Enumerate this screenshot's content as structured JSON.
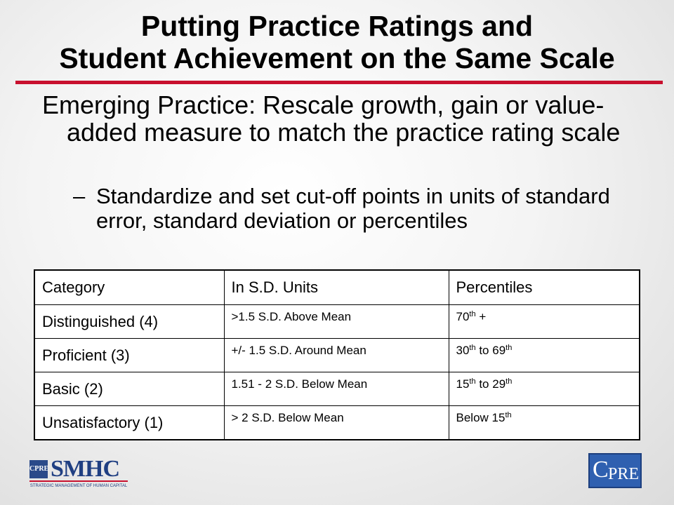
{
  "title": {
    "line1": "Putting Practice Ratings and",
    "line2": "Student Achievement on the Same Scale"
  },
  "bullets": {
    "main": "Emerging Practice: Rescale growth, gain or value-added measure to match the practice rating scale",
    "sub_dash": "–",
    "sub": "Standardize and set cut-off points in units of standard error, standard deviation or percentiles"
  },
  "table": {
    "headers": [
      "Category",
      "In S.D. Units",
      "Percentiles"
    ],
    "rows": [
      {
        "category": "Distinguished (4)",
        "sd": ">1.5 S.D. Above Mean",
        "pct_a": "70",
        "pct_a_sup": "th",
        "pct_mid": " +",
        "pct_b": "",
        "pct_b_sup": ""
      },
      {
        "category": "Proficient (3)",
        "sd": "+/- 1.5 S.D. Around Mean",
        "pct_a": "30",
        "pct_a_sup": "th",
        "pct_mid": " to 69",
        "pct_b": "",
        "pct_b_sup": "th"
      },
      {
        "category": "Basic (2)",
        "sd": "1.51 - 2 S.D. Below  Mean",
        "pct_a": "15",
        "pct_a_sup": "th",
        "pct_mid": " to 29",
        "pct_b": "",
        "pct_b_sup": "th"
      },
      {
        "category": "Unsatisfactory (1)",
        "sd": "> 2 S.D. Below Mean",
        "pct_a": "Below 15",
        "pct_a_sup": "th",
        "pct_mid": "",
        "pct_b": "",
        "pct_b_sup": ""
      }
    ]
  },
  "logos": {
    "smhc_mark": "CPRE",
    "smhc_word": "SMHC",
    "smhc_tagline": "STRATEGIC MANAGEMENT OF HUMAN CAPITAL",
    "cpre_c": "C",
    "cpre_rest": "PRE"
  },
  "colors": {
    "accent_rule": "#c8102e",
    "logo_blue": "#1f3f82"
  }
}
